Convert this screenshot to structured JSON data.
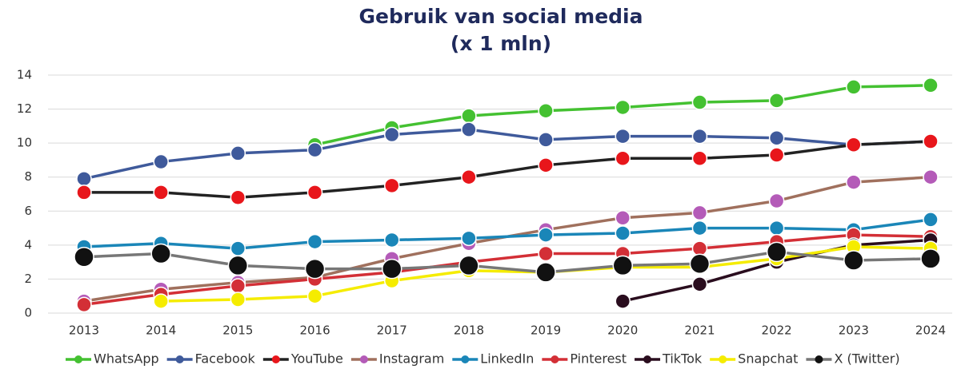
{
  "chart_data": {
    "type": "line",
    "title": "Gebruik van social media",
    "subtitle": "(x 1 mln)",
    "categories": [
      "2013",
      "2014",
      "2015",
      "2016",
      "2017",
      "2018",
      "2019",
      "2020",
      "2021",
      "2022",
      "2023",
      "2024"
    ],
    "ylim": [
      0,
      14
    ],
    "yticks": [
      0,
      2,
      4,
      6,
      8,
      10,
      12,
      14
    ],
    "grid": true,
    "legend": "bottom",
    "series": [
      {
        "name": "WhatsApp",
        "color": "#44c131",
        "marker": "#44c131",
        "values": [
          null,
          null,
          null,
          9.9,
          10.9,
          11.6,
          11.9,
          12.1,
          12.4,
          12.5,
          13.3,
          13.4
        ]
      },
      {
        "name": "Facebook",
        "color": "#3f5a9b",
        "marker": "#3f5a9b",
        "values": [
          7.9,
          8.9,
          9.4,
          9.6,
          10.5,
          10.8,
          10.2,
          10.4,
          10.4,
          10.3,
          9.9,
          10.1
        ]
      },
      {
        "name": "YouTube",
        "color": "#222222",
        "marker": "#e8161b",
        "values": [
          7.1,
          7.1,
          6.8,
          7.1,
          7.5,
          8.0,
          8.7,
          9.1,
          9.1,
          9.3,
          9.9,
          10.1
        ]
      },
      {
        "name": "Instagram",
        "color": "#a0705d",
        "marker": "#b45bb8",
        "values": [
          0.7,
          1.4,
          1.8,
          2.1,
          3.2,
          4.1,
          4.9,
          5.6,
          5.9,
          6.6,
          7.7,
          8.0
        ]
      },
      {
        "name": "LinkedIn",
        "color": "#1a86b8",
        "marker": "#1a86b8",
        "values": [
          3.9,
          4.1,
          3.8,
          4.2,
          4.3,
          4.4,
          4.6,
          4.7,
          5.0,
          5.0,
          4.9,
          5.5
        ]
      },
      {
        "name": "Pinterest",
        "color": "#d32f36",
        "marker": "#d32f36",
        "values": [
          0.5,
          1.1,
          1.6,
          2.0,
          2.4,
          3.0,
          3.5,
          3.5,
          3.8,
          4.2,
          4.6,
          4.5
        ]
      },
      {
        "name": "TikTok",
        "color": "#2a0d1e",
        "marker": "#2a0d1e",
        "values": [
          null,
          null,
          null,
          null,
          null,
          null,
          null,
          0.7,
          1.7,
          3.0,
          4.0,
          4.3
        ]
      },
      {
        "name": "Snapchat",
        "color": "#f5ec00",
        "marker": "#f5ec00",
        "values": [
          null,
          0.7,
          0.8,
          1.0,
          1.9,
          2.5,
          2.4,
          2.7,
          2.7,
          3.2,
          3.9,
          3.8
        ]
      },
      {
        "name": "X (Twitter)",
        "color": "#777777",
        "marker": "#111111",
        "values": [
          3.3,
          3.5,
          2.8,
          2.6,
          2.6,
          2.8,
          2.4,
          2.8,
          2.9,
          3.6,
          3.1,
          3.2
        ]
      }
    ]
  }
}
